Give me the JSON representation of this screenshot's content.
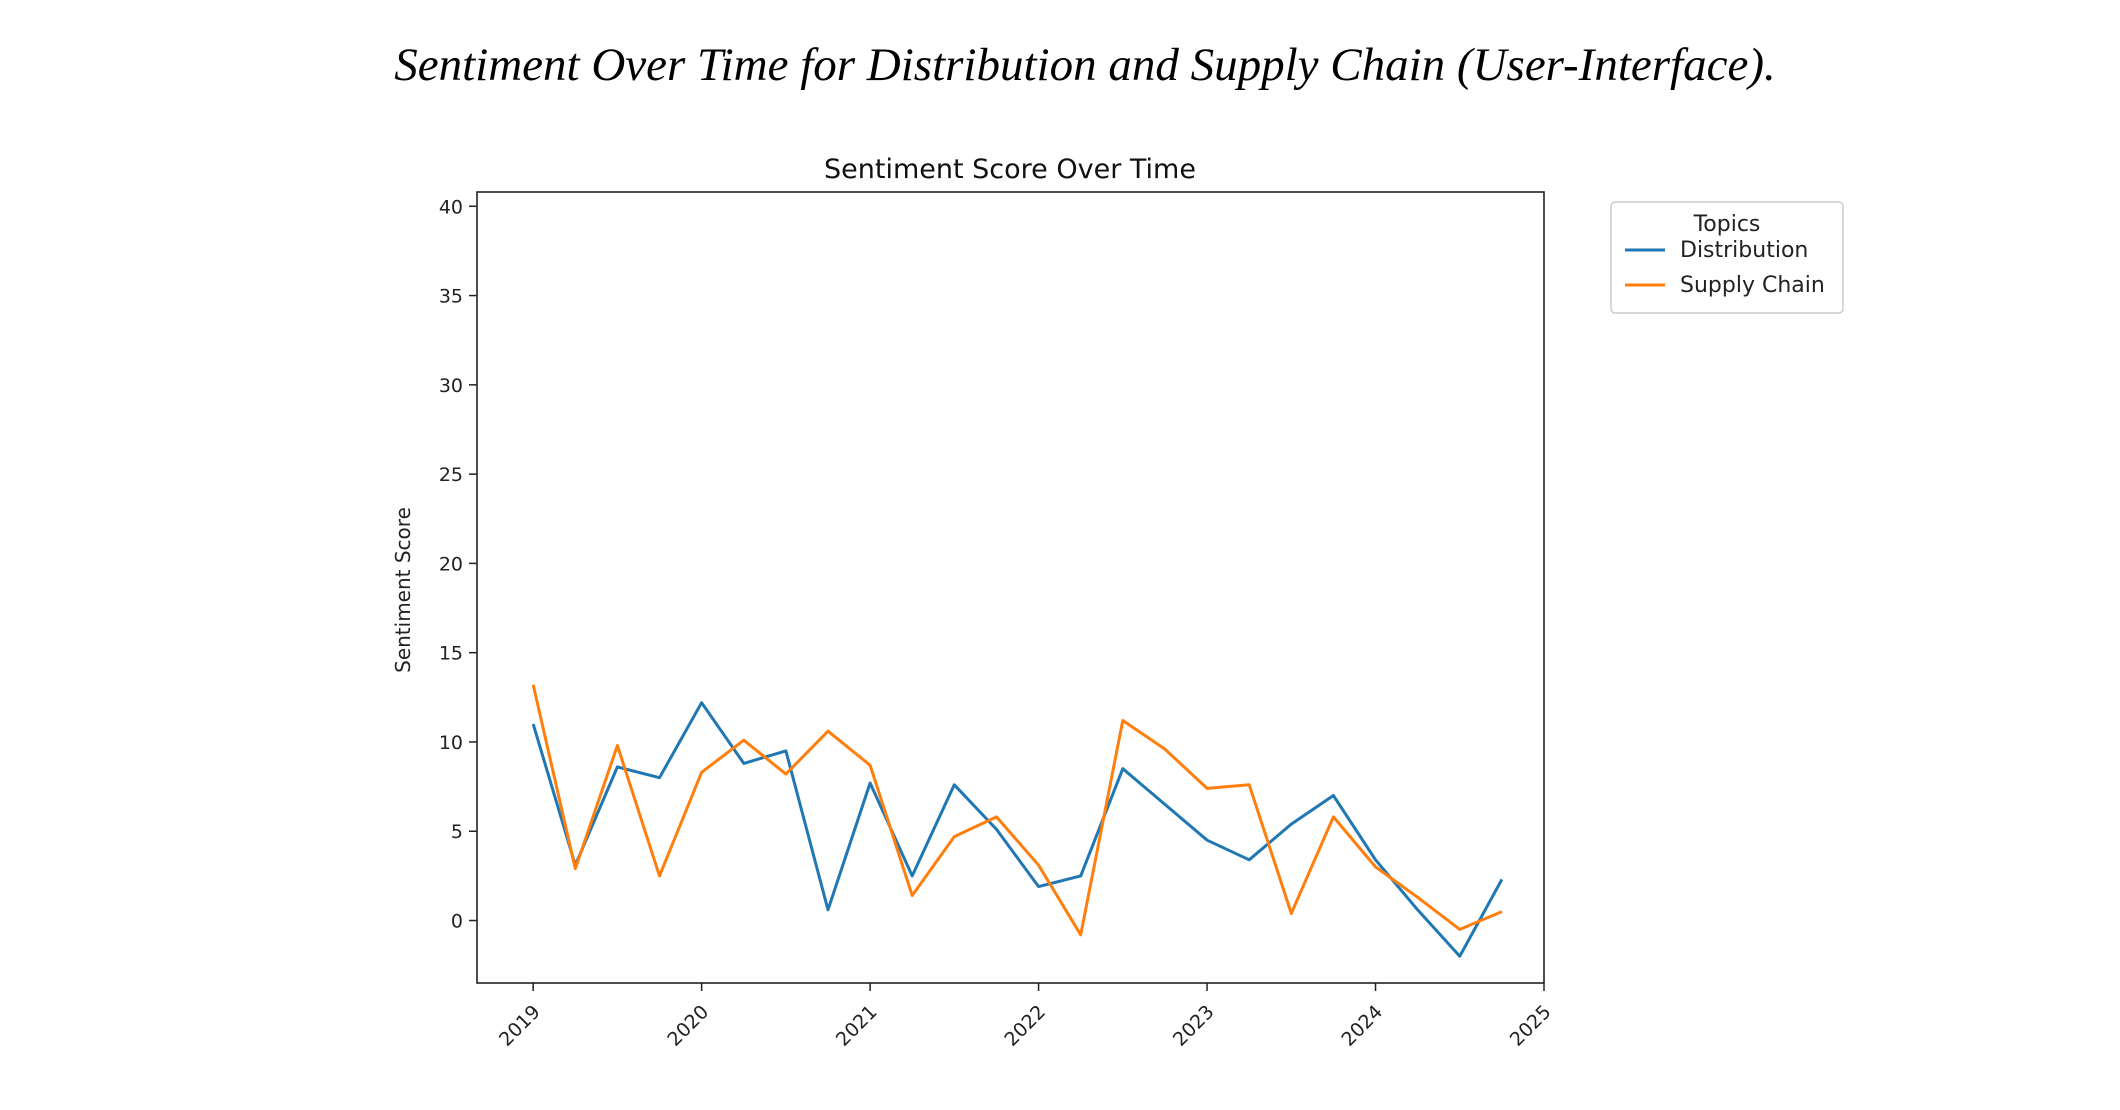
{
  "caption": "Sentiment Over Time for Distribution and Supply Chain (User-Interface).",
  "chart_data": {
    "type": "line",
    "title": "Sentiment Score Over Time",
    "xlabel": "",
    "ylabel": "Sentiment Score",
    "xlim": [
      "2018-09-01",
      "2025-01-01"
    ],
    "ylim": [
      -3.5,
      40.8
    ],
    "x_ticks": [
      "2019",
      "2020",
      "2021",
      "2022",
      "2023",
      "2024",
      "2025"
    ],
    "y_ticks": [
      0,
      5,
      10,
      15,
      20,
      25,
      30,
      35,
      40
    ],
    "x": [
      "2019-01",
      "2019-04",
      "2019-07",
      "2019-10",
      "2020-01",
      "2020-04",
      "2020-07",
      "2020-10",
      "2021-01",
      "2021-04",
      "2021-07",
      "2021-10",
      "2022-01",
      "2022-04",
      "2022-07",
      "2022-10",
      "2023-01",
      "2023-04",
      "2023-07",
      "2023-10",
      "2024-01",
      "2024-04",
      "2024-07",
      "2024-10"
    ],
    "series": [
      {
        "name": "Distribution",
        "color": "#1f77b4",
        "values": [
          11.0,
          3.1,
          8.6,
          8.0,
          12.2,
          8.8,
          9.5,
          0.6,
          7.7,
          2.5,
          7.6,
          5.1,
          1.9,
          2.5,
          8.5,
          6.5,
          4.5,
          3.4,
          5.4,
          7.0,
          3.4,
          0.6,
          -2.0,
          2.3
        ]
      },
      {
        "name": "Supply Chain",
        "color": "#ff7f0e",
        "values": [
          13.2,
          2.9,
          9.8,
          2.5,
          8.3,
          10.1,
          8.2,
          10.6,
          8.7,
          1.4,
          4.7,
          5.8,
          3.1,
          -0.8,
          11.2,
          9.6,
          7.4,
          7.6,
          0.4,
          5.8,
          3.0,
          1.3,
          -0.5,
          0.5
        ]
      }
    ],
    "legend": {
      "title": "Topics",
      "position": "outside-top-right"
    },
    "grid": false
  }
}
